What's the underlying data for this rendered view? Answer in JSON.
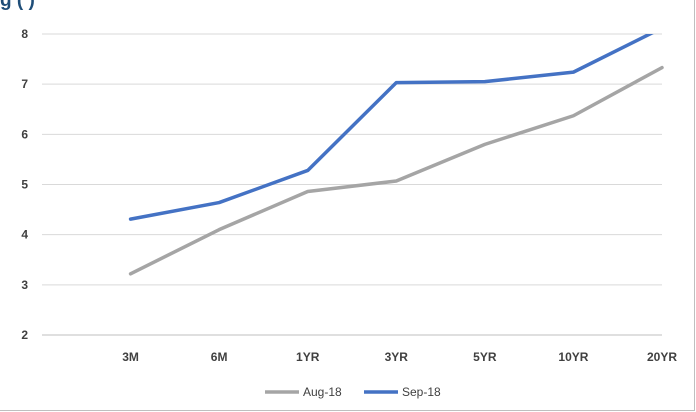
{
  "title_fragment": "g                                                (       )",
  "chart_data": {
    "type": "line",
    "categories": [
      "3M",
      "6M",
      "1YR",
      "3YR",
      "5YR",
      "10YR",
      "20YR"
    ],
    "series": [
      {
        "name": "Aug-18",
        "color": "#a5a5a5",
        "values": [
          3.22,
          4.1,
          4.86,
          5.07,
          5.8,
          6.37,
          7.33
        ]
      },
      {
        "name": "Sep-18",
        "color": "#4472c4",
        "values": [
          4.31,
          4.64,
          5.28,
          7.03,
          7.05,
          7.24,
          8.12
        ]
      }
    ],
    "ylim": [
      2,
      8
    ],
    "yticks": [
      "8",
      "7",
      "6",
      "5",
      "4",
      "3",
      "2"
    ],
    "grid": true,
    "legend_position": "bottom"
  }
}
